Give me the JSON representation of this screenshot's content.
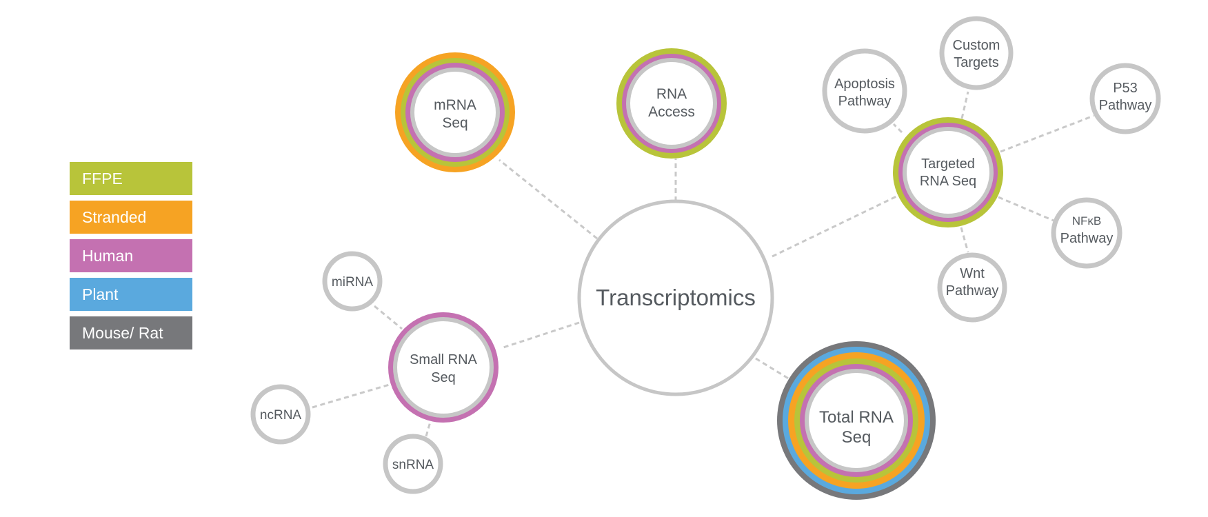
{
  "colors": {
    "ffpe": "#b8c43a",
    "stranded": "#f6a323",
    "human": "#c471b1",
    "plant": "#5aa9de",
    "mouse_rat": "#77787b",
    "node_gray": "#c6c6c6",
    "line_gray": "#c9c9c9"
  },
  "legend": [
    {
      "label": "FFPE",
      "color": "#b8c43a"
    },
    {
      "label": "Stranded",
      "color": "#f6a323"
    },
    {
      "label": "Human",
      "color": "#c471b1"
    },
    {
      "label": "Plant",
      "color": "#5aa9de"
    },
    {
      "label": "Mouse/ Rat",
      "color": "#77787b"
    }
  ],
  "center": {
    "label": "Transcriptomics"
  },
  "nodes": {
    "mrna_seq": {
      "lines": [
        "mRNA",
        "Seq"
      ],
      "categories": [
        "Stranded",
        "FFPE",
        "Human"
      ]
    },
    "rna_access": {
      "lines": [
        "RNA",
        "Access"
      ],
      "categories": [
        "FFPE",
        "Human"
      ]
    },
    "targeted_rna_seq": {
      "lines": [
        "Targeted",
        "RNA Seq"
      ],
      "categories": [
        "FFPE",
        "Human"
      ]
    },
    "total_rna_seq": {
      "lines": [
        "Total RNA",
        "Seq"
      ],
      "categories": [
        "Mouse/ Rat",
        "Plant",
        "Stranded",
        "FFPE",
        "Human"
      ]
    },
    "small_rna_seq": {
      "lines": [
        "Small RNA",
        "Seq"
      ],
      "categories": [
        "Human"
      ]
    },
    "apoptosis": {
      "lines": [
        "Apoptosis",
        "Pathway"
      ]
    },
    "custom_targets": {
      "lines": [
        "Custom",
        "Targets"
      ]
    },
    "p53": {
      "lines": [
        "P53",
        "Pathway"
      ]
    },
    "nfkb": {
      "lines": [
        "NFκB",
        "Pathway"
      ]
    },
    "wnt": {
      "lines": [
        "Wnt",
        "Pathway"
      ]
    },
    "mirna": {
      "lines": [
        "miRNA"
      ]
    },
    "ncrna": {
      "lines": [
        "ncRNA"
      ]
    },
    "snrna": {
      "lines": [
        "snRNA"
      ]
    }
  }
}
